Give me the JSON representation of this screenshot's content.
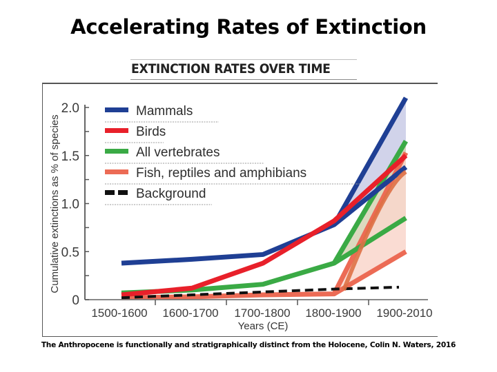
{
  "slide": {
    "title": "Accelerating Rates of Extinction",
    "caption": "The Anthropocene is functionally and stratigraphically distinct from the Holocene, Colin N. Waters, 2016"
  },
  "chart_data": {
    "type": "line",
    "title": "EXTINCTION RATES OVER TIME",
    "xlabel": "Years (CE)",
    "ylabel": "Cumulative extinctions as % of species",
    "categories": [
      "1500-1600",
      "1600-1700",
      "1700-1800",
      "1800-1900",
      "1900-2010"
    ],
    "ylim": [
      0,
      2.0
    ],
    "yticks": [
      0,
      0.5,
      1.0,
      1.5,
      2.0
    ],
    "ytick_labels": [
      "0",
      "0.5",
      "1.0",
      "1.5",
      "2.0"
    ],
    "grid": false,
    "legend_position": "top-left",
    "series": [
      {
        "name": "Mammals",
        "color": "#1f3f94",
        "style": "solid",
        "values": [
          0.38,
          0.42,
          0.47,
          0.78,
          2.1
        ],
        "values_lower_2010": 1.38,
        "band_color": "#c9cbe6"
      },
      {
        "name": "Birds",
        "color": "#e8202a",
        "style": "solid",
        "values": [
          0.05,
          0.12,
          0.38,
          0.82,
          1.5
        ]
      },
      {
        "name": "All vertebrates",
        "color": "#3aaa45",
        "style": "solid",
        "values": [
          0.07,
          0.1,
          0.16,
          0.38,
          1.65
        ],
        "values_lower_2010": 0.85,
        "band_color": "#d6d2b4"
      },
      {
        "name": "Fish, reptiles and amphibians",
        "color": "#ec6b55",
        "style": "solid",
        "values": [
          0.02,
          0.03,
          0.05,
          0.06,
          1.53
        ],
        "values_lower_2010": 0.5,
        "band_color": "#f9d6cb"
      },
      {
        "name": "Background",
        "color": "#111111",
        "style": "dashed",
        "values": [
          0.02,
          0.05,
          0.08,
          0.11,
          0.13
        ]
      }
    ]
  }
}
